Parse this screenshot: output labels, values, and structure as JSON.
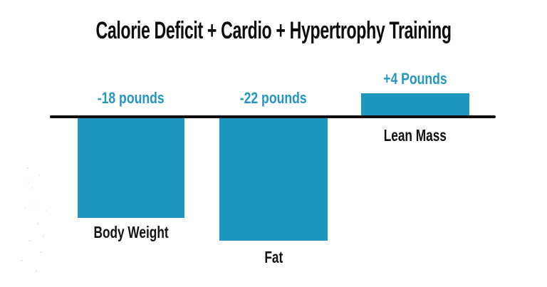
{
  "title": "Calorie Deficit + Cardio + Hypertrophy Training",
  "colors": {
    "bar": "#1e97be",
    "value_label": "#2496c0",
    "category_label": "#121212",
    "axis_line": "#0e0e0e",
    "title_text": "#0d0d0d",
    "background": "#ffffff"
  },
  "chart_data": {
    "type": "bar",
    "title": "Calorie Deficit + Cardio + Hypertrophy Training",
    "categories": [
      "Body Weight",
      "Fat",
      "Lean Mass"
    ],
    "values": [
      -18,
      -22,
      4
    ],
    "value_labels": [
      "-18 pounds",
      "-22 pounds",
      "+4 Pounds"
    ],
    "unit": "pounds",
    "baseline": 0,
    "ylim": [
      -24,
      6
    ],
    "grid": false,
    "legend": "none",
    "orientation": "vertical",
    "zero_axis_line": true
  }
}
